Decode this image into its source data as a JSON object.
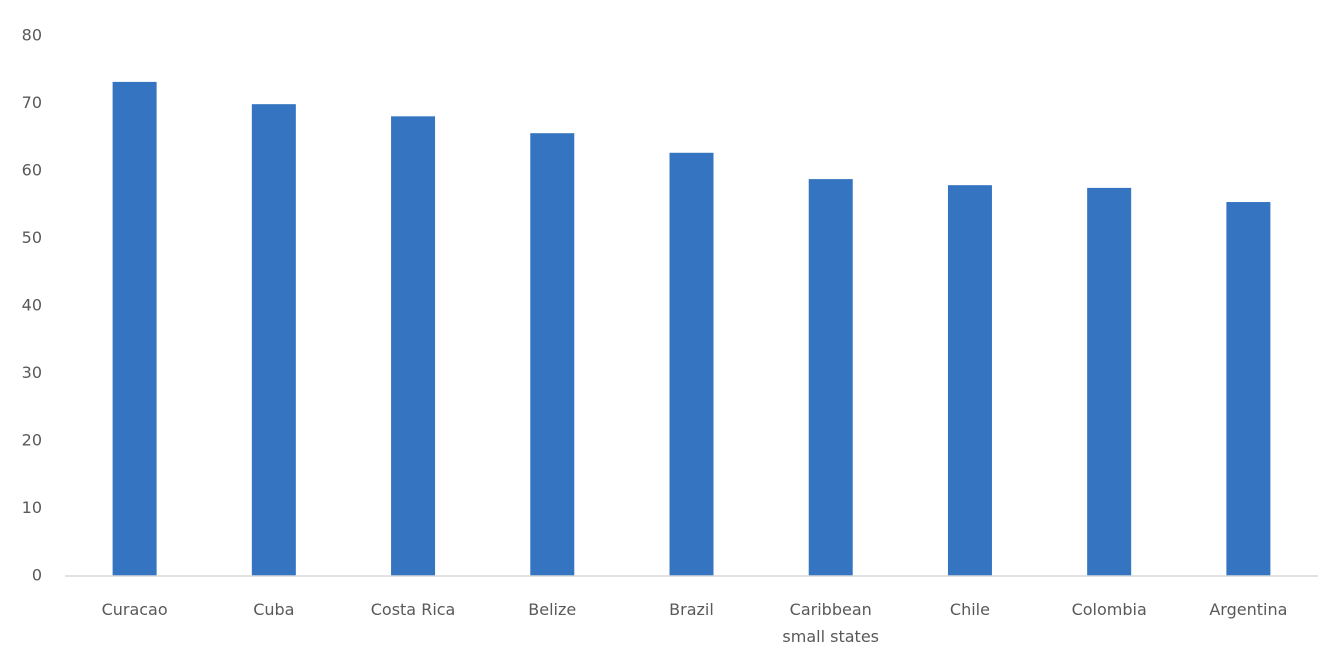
{
  "chart_data": {
    "type": "bar",
    "categories": [
      "Curacao",
      "Cuba",
      "Costa Rica",
      "Belize",
      "Brazil",
      "Caribbean small states",
      "Chile",
      "Colombia",
      "Argentina"
    ],
    "values": [
      73.2,
      69.9,
      68.1,
      65.6,
      62.7,
      58.8,
      57.9,
      57.5,
      55.4
    ],
    "color": "#3474c0",
    "ylim": [
      0,
      80
    ],
    "yticks": [
      0,
      10,
      20,
      30,
      40,
      50,
      60,
      70,
      80
    ],
    "grid": false
  }
}
